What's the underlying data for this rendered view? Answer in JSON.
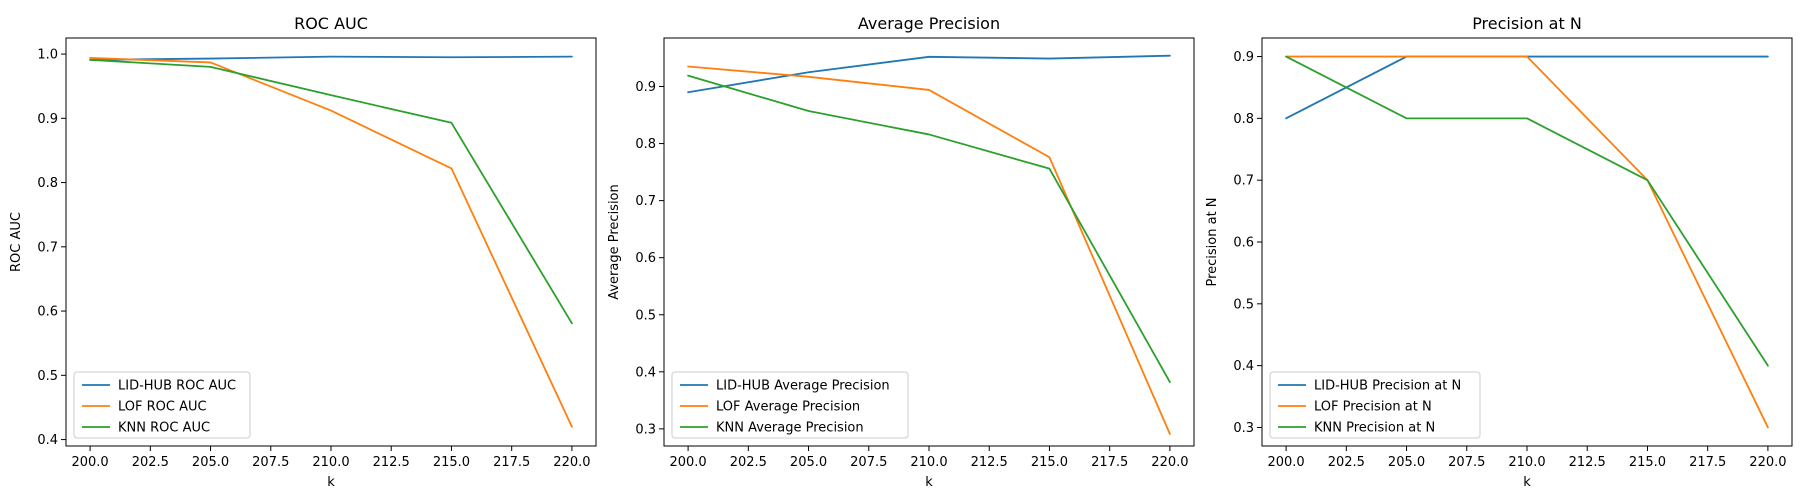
{
  "chart_data": [
    {
      "type": "line",
      "title": "ROC AUC",
      "xlabel": "k",
      "ylabel": "ROC AUC",
      "x": [
        200,
        205,
        210,
        215,
        220
      ],
      "xlim": [
        199.0,
        221.0
      ],
      "ylim": [
        0.39,
        1.025
      ],
      "xticks": [
        200.0,
        202.5,
        205.0,
        207.5,
        210.0,
        212.5,
        215.0,
        217.5,
        220.0
      ],
      "xtick_labels": [
        "200.0",
        "202.5",
        "205.0",
        "207.5",
        "210.0",
        "212.5",
        "215.0",
        "217.5",
        "220.0"
      ],
      "yticks": [
        0.4,
        0.5,
        0.6,
        0.7,
        0.8,
        0.9,
        1.0
      ],
      "ytick_labels": [
        "0.4",
        "0.5",
        "0.6",
        "0.7",
        "0.8",
        "0.9",
        "1.0"
      ],
      "legend": "lower-left",
      "grid": false,
      "series": [
        {
          "name": "LID-HUB ROC AUC",
          "color": "#1f77b4",
          "values": [
            0.991,
            0.993,
            0.996,
            0.995,
            0.996
          ]
        },
        {
          "name": "LOF ROC AUC",
          "color": "#ff7f0e",
          "values": [
            0.994,
            0.987,
            0.912,
            0.822,
            0.42
          ]
        },
        {
          "name": "KNN ROC AUC",
          "color": "#2ca02c",
          "values": [
            0.991,
            0.98,
            0.936,
            0.893,
            0.581
          ]
        }
      ]
    },
    {
      "type": "line",
      "title": "Average Precision",
      "xlabel": "k",
      "ylabel": "Average Precision",
      "x": [
        200,
        205,
        210,
        215,
        220
      ],
      "xlim": [
        199.0,
        221.0
      ],
      "ylim": [
        0.27,
        0.985
      ],
      "xticks": [
        200.0,
        202.5,
        205.0,
        207.5,
        210.0,
        212.5,
        215.0,
        217.5,
        220.0
      ],
      "xtick_labels": [
        "200.0",
        "202.5",
        "205.0",
        "207.5",
        "210.0",
        "212.5",
        "215.0",
        "217.5",
        "220.0"
      ],
      "yticks": [
        0.3,
        0.4,
        0.5,
        0.6,
        0.7,
        0.8,
        0.9
      ],
      "ytick_labels": [
        "0.3",
        "0.4",
        "0.5",
        "0.6",
        "0.7",
        "0.8",
        "0.9"
      ],
      "legend": "lower-left",
      "grid": false,
      "series": [
        {
          "name": "LID-HUB Average Precision",
          "color": "#1f77b4",
          "values": [
            0.89,
            0.925,
            0.952,
            0.949,
            0.954
          ]
        },
        {
          "name": "LOF Average Precision",
          "color": "#ff7f0e",
          "values": [
            0.935,
            0.917,
            0.894,
            0.776,
            0.291
          ]
        },
        {
          "name": "KNN Average Precision",
          "color": "#2ca02c",
          "values": [
            0.919,
            0.857,
            0.816,
            0.756,
            0.382
          ]
        }
      ]
    },
    {
      "type": "line",
      "title": "Precision at N",
      "xlabel": "k",
      "ylabel": "Precision at N",
      "x": [
        200,
        205,
        210,
        215,
        220
      ],
      "xlim": [
        199.0,
        221.0
      ],
      "ylim": [
        0.27,
        0.93
      ],
      "xticks": [
        200.0,
        202.5,
        205.0,
        207.5,
        210.0,
        212.5,
        215.0,
        217.5,
        220.0
      ],
      "xtick_labels": [
        "200.0",
        "202.5",
        "205.0",
        "207.5",
        "210.0",
        "212.5",
        "215.0",
        "217.5",
        "220.0"
      ],
      "yticks": [
        0.3,
        0.4,
        0.5,
        0.6,
        0.7,
        0.8,
        0.9
      ],
      "ytick_labels": [
        "0.3",
        "0.4",
        "0.5",
        "0.6",
        "0.7",
        "0.8",
        "0.9"
      ],
      "legend": "lower-left",
      "grid": false,
      "series": [
        {
          "name": "LID-HUB Precision at N",
          "color": "#1f77b4",
          "values": [
            0.8,
            0.9,
            0.9,
            0.9,
            0.9
          ]
        },
        {
          "name": "LOF Precision at N",
          "color": "#ff7f0e",
          "values": [
            0.9,
            0.9,
            0.9,
            0.7,
            0.3
          ]
        },
        {
          "name": "KNN Precision at N",
          "color": "#2ca02c",
          "values": [
            0.9,
            0.8,
            0.8,
            0.7,
            0.4
          ]
        }
      ]
    }
  ]
}
